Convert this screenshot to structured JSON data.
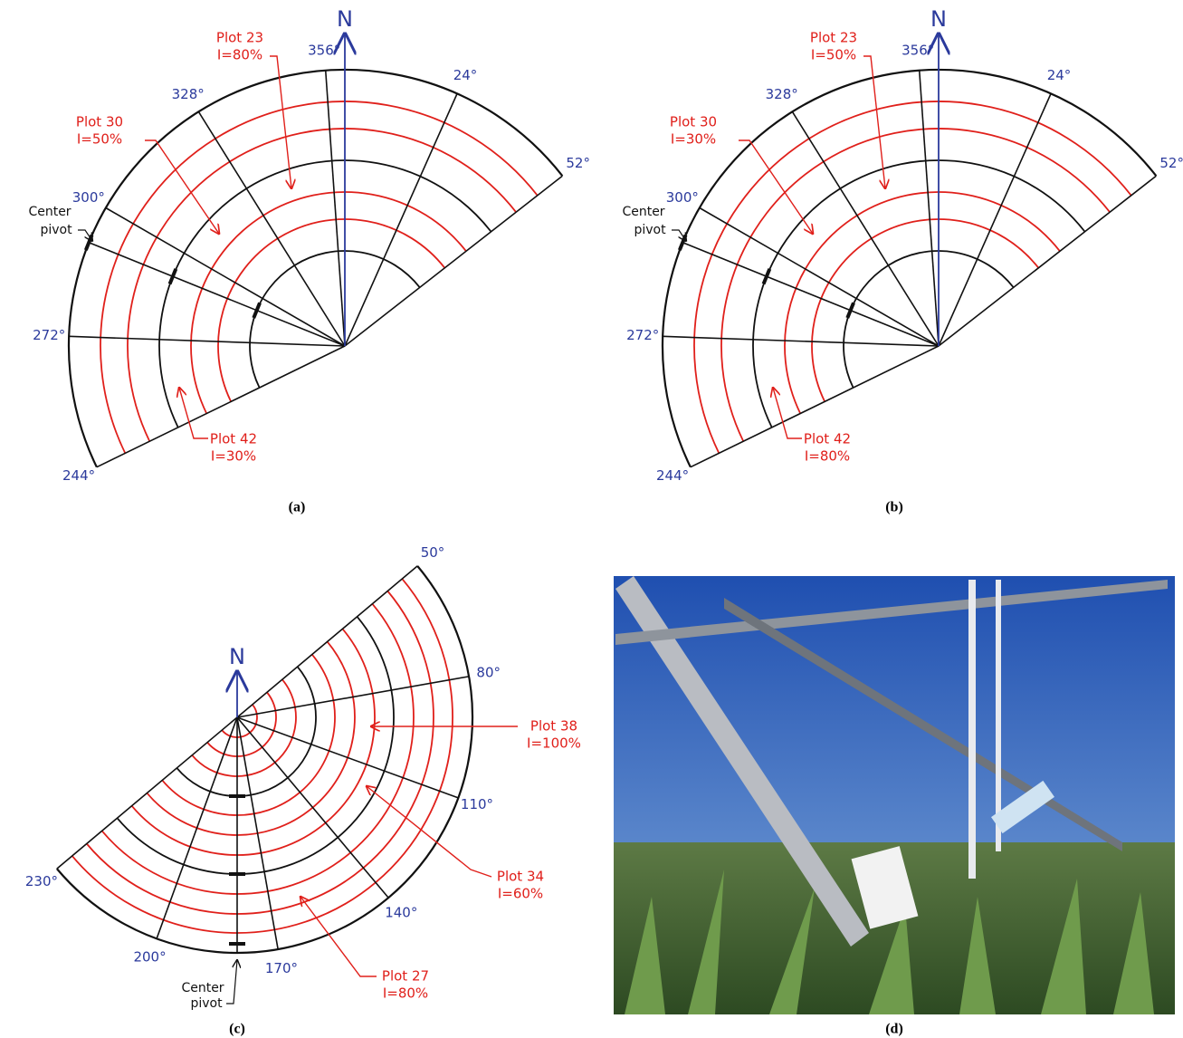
{
  "panels": [
    {
      "caption": "(a)",
      "north": "N",
      "angles": [
        "244°",
        "272°",
        "300°",
        "328°",
        "356°",
        "24°",
        "52°"
      ],
      "center_pivot": [
        "Center",
        "pivot"
      ],
      "plots": [
        {
          "name": "Plot 23",
          "value": "I=80%"
        },
        {
          "name": "Plot 30",
          "value": "I=50%"
        },
        {
          "name": "Plot 42",
          "value": "I=30%"
        }
      ]
    },
    {
      "caption": "(b)",
      "north": "N",
      "angles": [
        "244°",
        "272°",
        "300°",
        "328°",
        "356°",
        "24°",
        "52°"
      ],
      "center_pivot": [
        "Center",
        "pivot"
      ],
      "plots": [
        {
          "name": "Plot 23",
          "value": "I=50%"
        },
        {
          "name": "Plot 30",
          "value": "I=30%"
        },
        {
          "name": "Plot 42",
          "value": "I=80%"
        }
      ]
    },
    {
      "caption": "(c)",
      "north": "N",
      "angles": [
        "50°",
        "80°",
        "110°",
        "140°",
        "170°",
        "200°",
        "230°"
      ],
      "center_pivot": [
        "Center",
        "pivot"
      ],
      "plots": [
        {
          "name": "Plot 38",
          "value": "I=100%"
        },
        {
          "name": "Plot 34",
          "value": "I=60%"
        },
        {
          "name": "Plot 27",
          "value": "I=80%"
        }
      ]
    },
    {
      "caption": "(d)"
    }
  ]
}
